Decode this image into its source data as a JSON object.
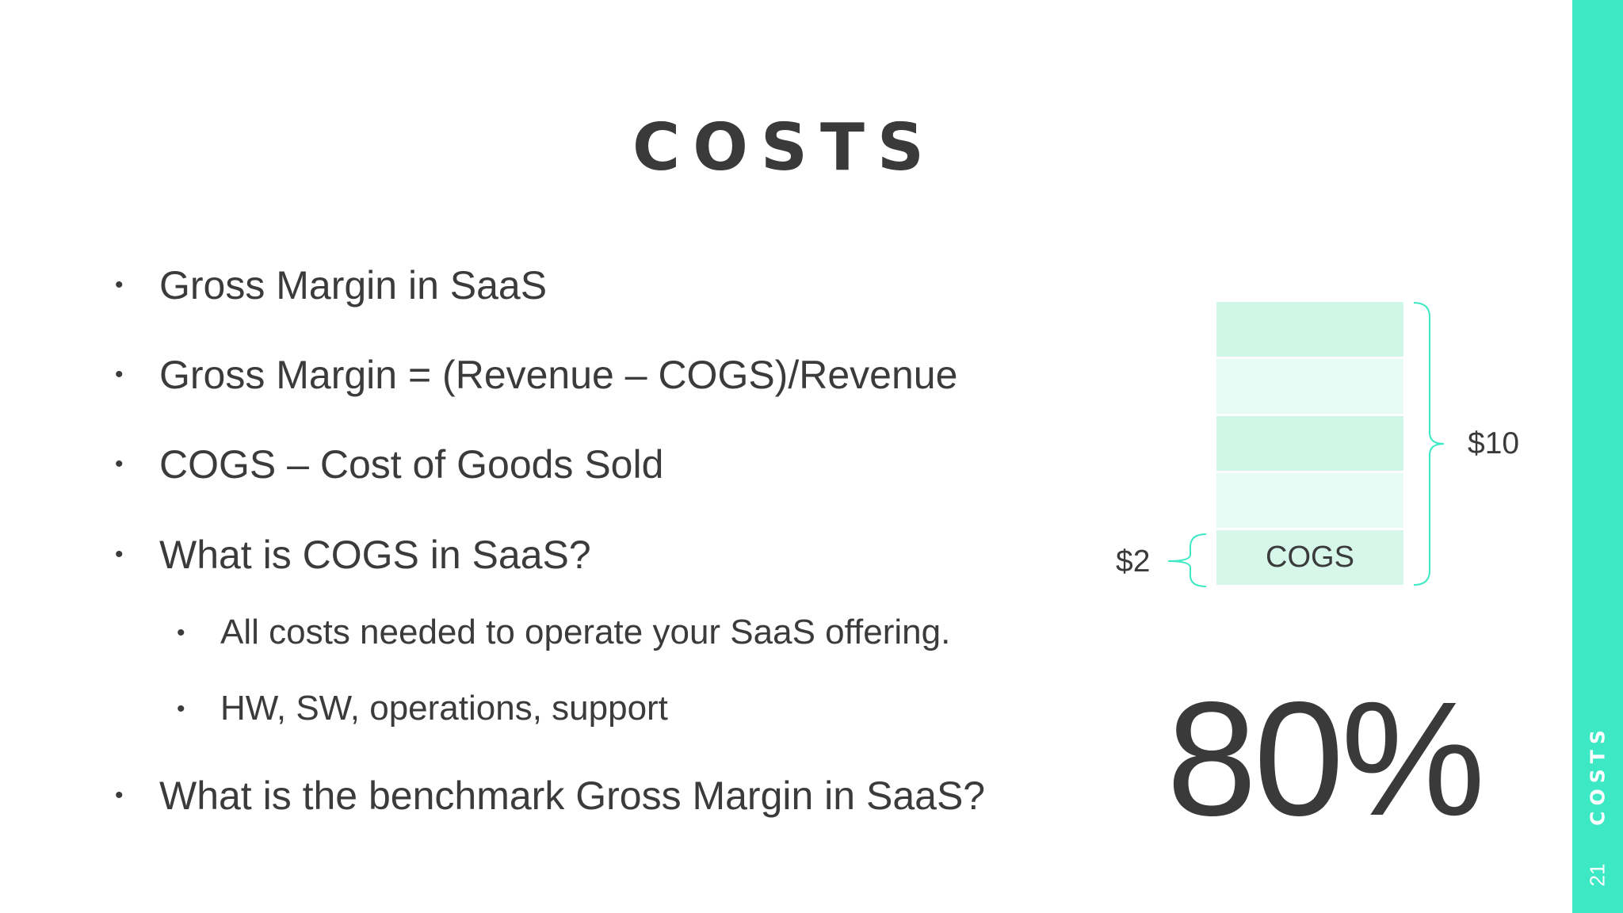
{
  "slide": {
    "title": "COSTS",
    "page_number": "21",
    "side_label": "COSTS",
    "accent_color": "#3de9c5"
  },
  "bullets": [
    {
      "level": 1,
      "text": "Gross Margin in SaaS"
    },
    {
      "level": 1,
      "text": "Gross Margin = (Revenue – COGS)/Revenue"
    },
    {
      "level": 1,
      "text": "COGS – Cost of Goods Sold"
    },
    {
      "level": 1,
      "text": "What is COGS in SaaS?"
    },
    {
      "level": 2,
      "text": "All costs needed to operate your SaaS offering."
    },
    {
      "level": 2,
      "text": "HW, SW, operations, support"
    },
    {
      "level": 1,
      "text": "What is the benchmark Gross Margin in SaaS?"
    }
  ],
  "diagram": {
    "total_label": "$10",
    "cogs_amount_label": "$2",
    "cogs_segment_label": "COGS",
    "segment_count": 5,
    "margin_value": "80%"
  }
}
